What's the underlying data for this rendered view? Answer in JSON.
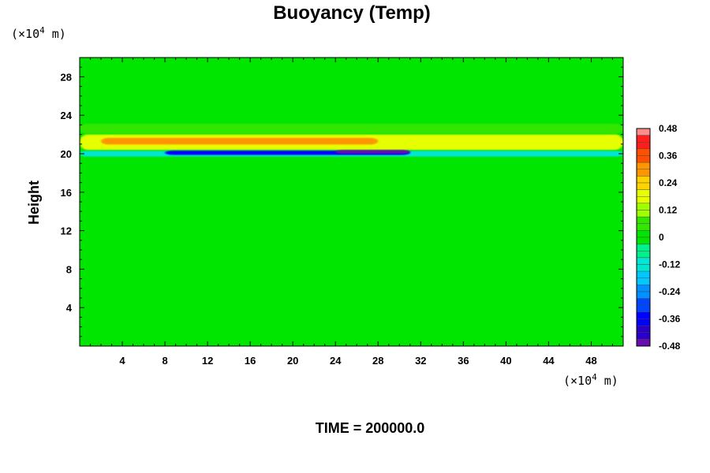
{
  "chart_data": {
    "type": "heatmap",
    "title": "Buoyancy (Temp)",
    "ylabel": "Height",
    "xlabel": "",
    "y_unit_label": "(×10",
    "y_unit_exp": "4",
    "y_unit_tail": " m)",
    "x_unit_label": "(×10",
    "x_unit_exp": "4",
    "x_unit_tail": " m)",
    "xlim": [
      0,
      51
    ],
    "ylim": [
      0,
      30
    ],
    "x_ticks": [
      "4",
      "8",
      "12",
      "16",
      "20",
      "24",
      "28",
      "32",
      "36",
      "40",
      "44",
      "48"
    ],
    "x_tick_values": [
      4,
      8,
      12,
      16,
      20,
      24,
      28,
      32,
      36,
      40,
      44,
      48
    ],
    "y_ticks": [
      "4",
      "8",
      "12",
      "16",
      "20",
      "24",
      "28"
    ],
    "y_tick_values": [
      4,
      8,
      12,
      16,
      20,
      24,
      28
    ],
    "colorbar": {
      "min": -0.48,
      "max": 0.48,
      "labels": [
        "0.48",
        "0.36",
        "0.24",
        "0.12",
        "0",
        "-0.12",
        "-0.24",
        "-0.36",
        "-0.48"
      ],
      "label_values": [
        0.48,
        0.36,
        0.24,
        0.12,
        0,
        -0.12,
        -0.24,
        -0.36,
        -0.48
      ]
    },
    "background_value": 0.02,
    "features": [
      {
        "kind": "layer",
        "name": "warm-layer",
        "x_start": 0,
        "x_end": 51,
        "y_center": 21.2,
        "y_halfwidth": 0.8,
        "value": 0.16
      },
      {
        "kind": "layer",
        "name": "warm-core",
        "x_start": 2,
        "x_end": 28,
        "y_center": 21.3,
        "y_halfwidth": 0.35,
        "value": 0.3
      },
      {
        "kind": "layer",
        "name": "warm-east",
        "x_start": 36,
        "x_end": 51,
        "y_center": 21.2,
        "y_halfwidth": 0.4,
        "value": 0.2
      },
      {
        "kind": "layer",
        "name": "upper-band",
        "x_start": 0,
        "x_end": 51,
        "y_center": 22.6,
        "y_halfwidth": 0.5,
        "value": 0.08
      },
      {
        "kind": "layer",
        "name": "cold-layer",
        "x_start": 0,
        "x_end": 51,
        "y_center": 20.0,
        "y_halfwidth": 0.3,
        "value": -0.14
      },
      {
        "kind": "layer",
        "name": "cold-core",
        "x_start": 8,
        "x_end": 31,
        "y_center": 20.1,
        "y_halfwidth": 0.22,
        "value": -0.36
      },
      {
        "kind": "layer",
        "name": "cold-deep",
        "x_start": 24,
        "x_end": 31,
        "y_center": 20.2,
        "y_halfwidth": 0.18,
        "value": -0.46
      }
    ]
  },
  "footer": {
    "time_text": "TIME = 200000.0"
  }
}
